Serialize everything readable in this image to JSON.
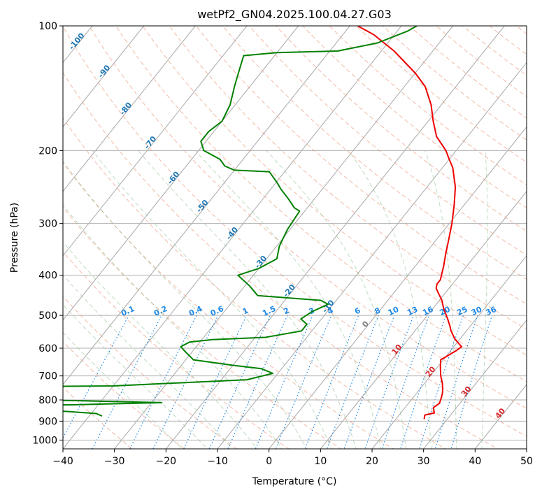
{
  "chart_data": {
    "type": "line",
    "title": "wetPf2_GN04.2025.100.04.27.G03",
    "xlabel": "Temperature (°C)",
    "ylabel": "Pressure (hPa)",
    "xlim": [
      -40,
      50
    ],
    "ylim": [
      1050,
      100
    ],
    "y_scale": "log",
    "x_ticks": [
      "−40",
      "−30",
      "−20",
      "−10",
      "0",
      "10",
      "20",
      "30",
      "40",
      "50"
    ],
    "y_ticks": [
      100,
      200,
      300,
      400,
      500,
      600,
      700,
      800,
      900,
      1000
    ],
    "grid": true,
    "colors": {
      "temperature": "#ee0000",
      "dewpoint": "#008000",
      "isotherm": "#a8a8a8",
      "dry_adiabat": "#f0a890",
      "moist_adiabat": "#88c088",
      "mixing_ratio": "#1e88e5",
      "isotherm_label": "#1f77b4",
      "warm_label": "#d62728",
      "zero_label": "#7f7f7f"
    },
    "series": [
      {
        "kind": "temperature",
        "points": [
          [
            25.5,
            890
          ],
          [
            25.0,
            870
          ],
          [
            26.5,
            860
          ],
          [
            25.5,
            835
          ],
          [
            26.0,
            815
          ],
          [
            25.5,
            790
          ],
          [
            25.0,
            770
          ],
          [
            24.5,
            755
          ],
          [
            23.5,
            730
          ],
          [
            22.0,
            700
          ],
          [
            20.5,
            665
          ],
          [
            19.5,
            640
          ],
          [
            20.0,
            630
          ],
          [
            20.5,
            620
          ],
          [
            21.0,
            610
          ],
          [
            21.5,
            595
          ],
          [
            20.5,
            585
          ],
          [
            19.0,
            570
          ],
          [
            17.0,
            545
          ],
          [
            16.0,
            530
          ],
          [
            14.5,
            510
          ],
          [
            12.0,
            480
          ],
          [
            10.5,
            460
          ],
          [
            9.0,
            445
          ],
          [
            7.5,
            430
          ],
          [
            7.0,
            420
          ],
          [
            7.0,
            410
          ],
          [
            6.5,
            400
          ],
          [
            5.5,
            380
          ],
          [
            4.0,
            355
          ],
          [
            2.5,
            330
          ],
          [
            0.5,
            300
          ],
          [
            -2.0,
            270
          ],
          [
            -4.5,
            245
          ],
          [
            -8.0,
            220
          ],
          [
            -10.0,
            210
          ],
          [
            -12.0,
            200
          ],
          [
            -16.0,
            185
          ],
          [
            -19.0,
            170
          ],
          [
            -22.0,
            155
          ],
          [
            -26.0,
            140
          ],
          [
            -30.0,
            130
          ],
          [
            -37.5,
            115
          ],
          [
            -44.0,
            105
          ],
          [
            -48.5,
            100
          ]
        ]
      },
      {
        "kind": "dewpoint",
        "points": [
          [
            -37.5,
            875
          ],
          [
            -39.0,
            863
          ],
          [
            -42.0,
            858
          ],
          [
            -45.0,
            853
          ],
          [
            -70.0,
            828
          ],
          [
            -45.0,
            822
          ],
          [
            -28.0,
            812
          ],
          [
            -45.0,
            803
          ],
          [
            -70.0,
            797
          ],
          [
            -60.0,
            743
          ],
          [
            -40.0,
            740
          ],
          [
            -15.0,
            715
          ],
          [
            -11.0,
            690
          ],
          [
            -14.0,
            672
          ],
          [
            -20.0,
            660
          ],
          [
            -28.5,
            640
          ],
          [
            -31.0,
            615
          ],
          [
            -33.0,
            595
          ],
          [
            -32.0,
            580
          ],
          [
            -28.0,
            572
          ],
          [
            -18.0,
            565
          ],
          [
            -12.0,
            545
          ],
          [
            -12.0,
            525
          ],
          [
            -14.0,
            510
          ],
          [
            -13.0,
            490
          ],
          [
            -11.0,
            470
          ],
          [
            -13.0,
            460
          ],
          [
            -26.0,
            448
          ],
          [
            -29.0,
            425
          ],
          [
            -33.0,
            400
          ],
          [
            -30.0,
            385
          ],
          [
            -28.0,
            365
          ],
          [
            -29.5,
            340
          ],
          [
            -30.5,
            310
          ],
          [
            -31.0,
            280
          ],
          [
            -32.5,
            275
          ],
          [
            -35.0,
            262
          ],
          [
            -38.0,
            248
          ],
          [
            -40.0,
            238
          ],
          [
            -43.0,
            225
          ],
          [
            -50.0,
            223
          ],
          [
            -52.5,
            218
          ],
          [
            -54.5,
            210
          ],
          [
            -59.0,
            200
          ],
          [
            -61.0,
            190
          ],
          [
            -61.0,
            180
          ],
          [
            -60.0,
            170
          ],
          [
            -61.0,
            155
          ],
          [
            -63.0,
            140
          ],
          [
            -65.0,
            125
          ],
          [
            -66.0,
            118
          ],
          [
            -60.0,
            116
          ],
          [
            -48.5,
            115
          ],
          [
            -42.0,
            110
          ],
          [
            -38.0,
            103
          ],
          [
            -37.0,
            100
          ]
        ]
      }
    ],
    "isotherm_labels": [
      "-100",
      "-90",
      "-80",
      "-70",
      "-60",
      "-50",
      "-40",
      "-30",
      "-20",
      "-10"
    ],
    "zero_label": "0",
    "warm_labels": [
      "10",
      "20",
      "30",
      "40"
    ],
    "mixing_ratio_labels": [
      "0.1",
      "0.2",
      "0.4",
      "0.6",
      "1",
      "1.5",
      "2",
      "3",
      "4",
      "6",
      "8",
      "10",
      "13",
      "16",
      "20",
      "25",
      "30",
      "36"
    ]
  }
}
